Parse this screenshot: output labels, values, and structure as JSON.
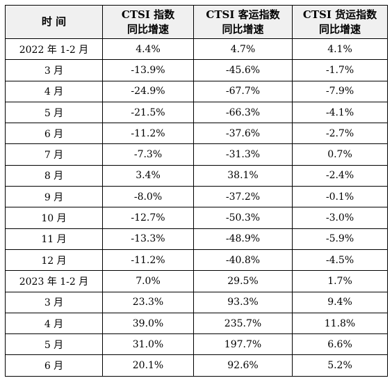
{
  "headers": [
    {
      "line1": "时  间",
      "line2": ""
    },
    {
      "line1": "CTSI 指数",
      "line2": "同比增速"
    },
    {
      "line1": "CTSI 客运指数",
      "line2": "同比增速"
    },
    {
      "line1": "CTSI 货运指数",
      "line2": "同比增速"
    }
  ],
  "rows": [
    [
      "2022 年 1-2 月",
      "4.4%",
      "4.7%",
      "4.1%"
    ],
    [
      "3 月",
      "-13.9%",
      "-45.6%",
      "-1.7%"
    ],
    [
      "4 月",
      "-24.9%",
      "-67.7%",
      "-7.9%"
    ],
    [
      "5 月",
      "-21.5%",
      "-66.3%",
      "-4.1%"
    ],
    [
      "6 月",
      "-11.2%",
      "-37.6%",
      "-2.7%"
    ],
    [
      "7 月",
      "-7.3%",
      "-31.3%",
      "0.7%"
    ],
    [
      "8 月",
      "3.4%",
      "38.1%",
      "-2.4%"
    ],
    [
      "9 月",
      "-8.0%",
      "-37.2%",
      "-0.1%"
    ],
    [
      "10 月",
      "-12.7%",
      "-50.3%",
      "-3.0%"
    ],
    [
      "11 月",
      "-13.3%",
      "-48.9%",
      "-5.9%"
    ],
    [
      "12 月",
      "-11.2%",
      "-40.8%",
      "-4.5%"
    ],
    [
      "2023 年 1-2 月",
      "7.0%",
      "29.5%",
      "1.7%"
    ],
    [
      "3 月",
      "23.3%",
      "93.3%",
      "9.4%"
    ],
    [
      "4 月",
      "39.0%",
      "235.7%",
      "11.8%"
    ],
    [
      "5 月",
      "31.0%",
      "197.7%",
      "6.6%"
    ],
    [
      "6 月",
      "20.1%",
      "92.6%",
      "5.2%"
    ]
  ],
  "colors": {
    "header_bg": "#f0f0f0",
    "border": "#000000",
    "text": "#000000"
  }
}
